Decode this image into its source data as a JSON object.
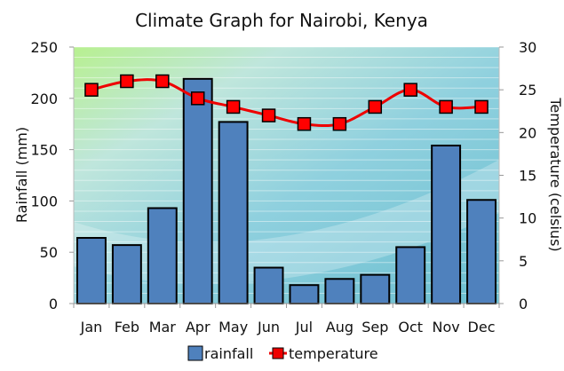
{
  "chart_data": {
    "type": "bar",
    "title": "Climate Graph for Nairobi, Kenya",
    "categories": [
      "Jan",
      "Feb",
      "Mar",
      "Apr",
      "May",
      "Jun",
      "Jul",
      "Aug",
      "Sep",
      "Oct",
      "Nov",
      "Dec"
    ],
    "series": [
      {
        "name": "rainfall",
        "type": "bar",
        "axis": "left",
        "color": "#4f81bd",
        "values": [
          64,
          57,
          93,
          219,
          177,
          35,
          18,
          24,
          28,
          55,
          154,
          101
        ]
      },
      {
        "name": "temperature",
        "type": "line",
        "axis": "right",
        "color": "#ff0000",
        "values": [
          25,
          26,
          26,
          24,
          23,
          22,
          21,
          21,
          23,
          25,
          23,
          23
        ]
      }
    ],
    "ylabel": "Rainfall (mm)",
    "ylim": [
      0,
      250
    ],
    "yticks": [
      "0",
      "50",
      "100",
      "150",
      "200",
      "250"
    ],
    "y2label": "Temperature (celsius)",
    "y2lim": [
      0,
      30
    ],
    "y2ticks": [
      "0",
      "5",
      "10",
      "15",
      "20",
      "25",
      "30"
    ],
    "grid": true,
    "legend": "bottom"
  }
}
